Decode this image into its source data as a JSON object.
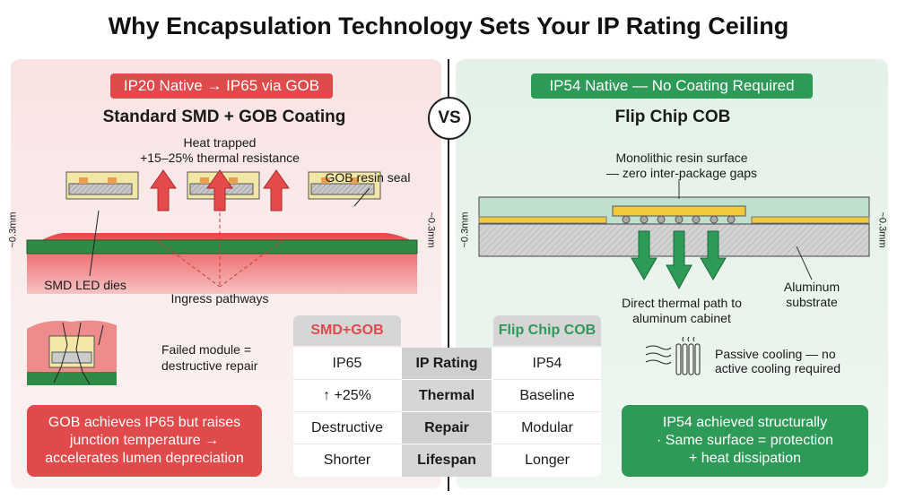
{
  "title": "Why Encapsulation Technology Sets Your IP Rating Ceiling",
  "vs": "VS",
  "left": {
    "badge": "IP20 Native → IP65 via GOB",
    "subtitle": "Standard SMD + GOB Coating",
    "heat_line1": "Heat trapped",
    "heat_line2": "+15–25% thermal resistance",
    "resin_label": "GOB resin seal",
    "dies_label": "SMD LED dies",
    "ingress_label": "Ingress pathways",
    "thickness": "~0.3mm",
    "failed_line1": "Failed module =",
    "failed_line2": "destructive repair",
    "callout": [
      "GOB achieves IP65 but raises",
      "junction temperature →",
      "accelerates lumen depreciation"
    ],
    "color": "#e04a4a"
  },
  "right": {
    "badge": "IP54 Native — No Coating Required",
    "subtitle": "Flip Chip COB",
    "surface_line1": "Monolithic resin surface",
    "surface_line2": "— zero inter-package gaps",
    "thermal_line1": "Direct thermal path to",
    "thermal_line2": "aluminum cabinet",
    "substrate_line1": "Aluminum",
    "substrate_line2": "substrate",
    "thickness": "~0.3mm",
    "cooling_line1": "Passive cooling — no",
    "cooling_line2": "active cooling required",
    "callout": [
      "IP54 achieved structurally",
      "· Same surface = protection",
      "+ heat dissipation"
    ],
    "color": "#2e9a57"
  },
  "table": {
    "headers": {
      "left": "SMD+GOB",
      "right": "Flip Chip COB"
    },
    "rows": [
      {
        "left": "IP65",
        "metric": "IP Rating",
        "right": "IP54"
      },
      {
        "left": "↑ +25%",
        "metric": "Thermal",
        "right": "Baseline"
      },
      {
        "left": "Destructive",
        "metric": "Repair",
        "right": "Modular"
      },
      {
        "left": "Shorter",
        "metric": "Lifespan",
        "right": "Longer"
      }
    ]
  }
}
